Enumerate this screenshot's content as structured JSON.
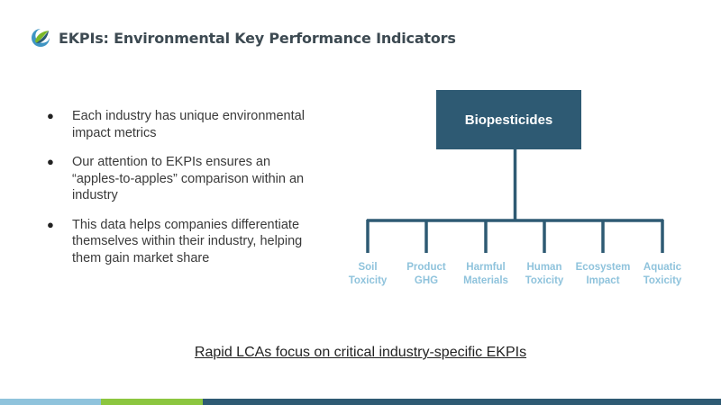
{
  "header": {
    "title": "EKPIs: Environmental Key Performance Indicators",
    "logo_colors": [
      "#7ab828",
      "#3f95c3",
      "#2a5a72"
    ]
  },
  "bullets": [
    {
      "text": "Each industry has unique environmental impact metrics"
    },
    {
      "text": "Our attention to EKPIs ensures an “apples-to-apples” comparison within an industry"
    },
    {
      "text": "This data helps companies differentiate themselves within their industry, helping them gain market share"
    }
  ],
  "bullet_glyph": "●",
  "diagram": {
    "root": "Biopesticides",
    "root_color": "#2e5a73",
    "line_color": "#2e5a73",
    "leaf_color": "#8fc3dc",
    "leaves": [
      {
        "line1": "Soil",
        "line2": "Toxicity"
      },
      {
        "line1": "Product",
        "line2": "GHG"
      },
      {
        "line1": "Harmful",
        "line2": "Materials"
      },
      {
        "line1": "Human",
        "line2": "Toxicity"
      },
      {
        "line1": "Ecosystem",
        "line2": "Impact"
      },
      {
        "line1": "Aquatic",
        "line2": "Toxicity"
      }
    ]
  },
  "footer": {
    "text": "Rapid LCAs focus on critical industry-specific EKPIs"
  },
  "bottom_bar_colors": [
    "#8fc3dc",
    "#8cc63f",
    "#2e5a73"
  ]
}
